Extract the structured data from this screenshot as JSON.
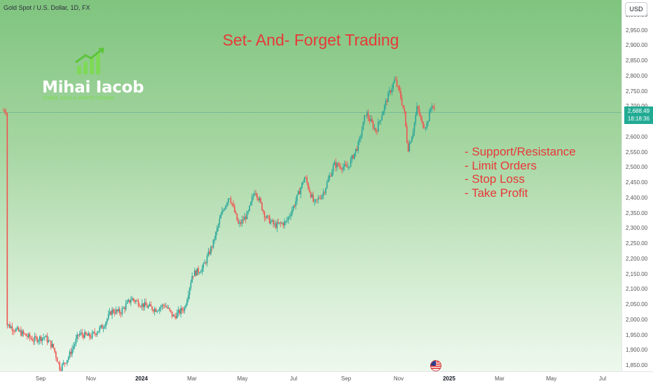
{
  "symbol_title": "Gold Spot / U.S. Dollar, 1D, FX",
  "currency": "USD",
  "headline": "Set- And- Forget Trading",
  "bullets": [
    "- Support/Resistance",
    "- Limit Orders",
    "- Stop Loss",
    "- Take Profit"
  ],
  "logo": {
    "name": "Mihai Iacob",
    "tagline": "FOREX, GOLD & CRYPTO TRADER"
  },
  "last_price": {
    "price": "2,688.49",
    "countdown": "18:18:36"
  },
  "price_ticks": [
    "3,000.00",
    "2,950.00",
    "2,900.00",
    "2,850.00",
    "2,800.00",
    "2,750.00",
    "2,700.00",
    "2,650.00",
    "2,600.00",
    "2,550.00",
    "2,500.00",
    "2,450.00",
    "2,400.00",
    "2,350.00",
    "2,300.00",
    "2,250.00",
    "2,200.00",
    "2,150.00",
    "2,100.00",
    "2,050.00",
    "2,000.00",
    "1,950.00",
    "1,900.00",
    "1,850.00"
  ],
  "time_ticks": [
    "Sep",
    "Nov",
    "2024",
    "Mar",
    "May",
    "Jul",
    "Sep",
    "Nov",
    "2025",
    "Mar",
    "May",
    "Jul"
  ],
  "colors": {
    "up": "#26a69a",
    "down": "#ef5350",
    "accent_text": "#e83838",
    "badge": "#22ab94"
  },
  "chart_data": {
    "type": "candlestick",
    "title": "",
    "ylim": [
      1840,
      3010
    ],
    "x_start": "2023-08",
    "x_end": "2025-07",
    "points": [
      {
        "x": "2023-08-05",
        "y": 1985
      },
      {
        "x": "2023-08-20",
        "y": 1960
      },
      {
        "x": "2023-09-05",
        "y": 1935
      },
      {
        "x": "2023-09-18",
        "y": 1945
      },
      {
        "x": "2023-09-28",
        "y": 1910
      },
      {
        "x": "2023-10-06",
        "y": 1840
      },
      {
        "x": "2023-10-16",
        "y": 1880
      },
      {
        "x": "2023-10-28",
        "y": 1955
      },
      {
        "x": "2023-11-10",
        "y": 1945
      },
      {
        "x": "2023-11-25",
        "y": 1980
      },
      {
        "x": "2023-12-05",
        "y": 2030
      },
      {
        "x": "2023-12-15",
        "y": 2025
      },
      {
        "x": "2023-12-28",
        "y": 2070
      },
      {
        "x": "2024-01-10",
        "y": 2050
      },
      {
        "x": "2024-01-25",
        "y": 2035
      },
      {
        "x": "2024-02-05",
        "y": 2050
      },
      {
        "x": "2024-02-15",
        "y": 2010
      },
      {
        "x": "2024-02-28",
        "y": 2040
      },
      {
        "x": "2024-03-08",
        "y": 2150
      },
      {
        "x": "2024-03-20",
        "y": 2170
      },
      {
        "x": "2024-04-01",
        "y": 2250
      },
      {
        "x": "2024-04-10",
        "y": 2340
      },
      {
        "x": "2024-04-20",
        "y": 2410
      },
      {
        "x": "2024-05-01",
        "y": 2310
      },
      {
        "x": "2024-05-12",
        "y": 2350
      },
      {
        "x": "2024-05-20",
        "y": 2430
      },
      {
        "x": "2024-06-01",
        "y": 2340
      },
      {
        "x": "2024-06-12",
        "y": 2310
      },
      {
        "x": "2024-06-25",
        "y": 2320
      },
      {
        "x": "2024-07-05",
        "y": 2380
      },
      {
        "x": "2024-07-17",
        "y": 2470
      },
      {
        "x": "2024-07-28",
        "y": 2380
      },
      {
        "x": "2024-08-08",
        "y": 2420
      },
      {
        "x": "2024-08-20",
        "y": 2510
      },
      {
        "x": "2024-09-05",
        "y": 2500
      },
      {
        "x": "2024-09-18",
        "y": 2580
      },
      {
        "x": "2024-09-26",
        "y": 2680
      },
      {
        "x": "2024-10-08",
        "y": 2620
      },
      {
        "x": "2024-10-20",
        "y": 2720
      },
      {
        "x": "2024-10-30",
        "y": 2790
      },
      {
        "x": "2024-11-05",
        "y": 2740
      },
      {
        "x": "2024-11-10",
        "y": 2680
      },
      {
        "x": "2024-11-14",
        "y": 2560
      },
      {
        "x": "2024-11-20",
        "y": 2620
      },
      {
        "x": "2024-11-25",
        "y": 2700
      },
      {
        "x": "2024-12-01",
        "y": 2640
      },
      {
        "x": "2024-12-06",
        "y": 2640
      },
      {
        "x": "2024-12-12",
        "y": 2710
      },
      {
        "x": "2024-12-15",
        "y": 2688
      }
    ],
    "last_value": 2688.49
  }
}
